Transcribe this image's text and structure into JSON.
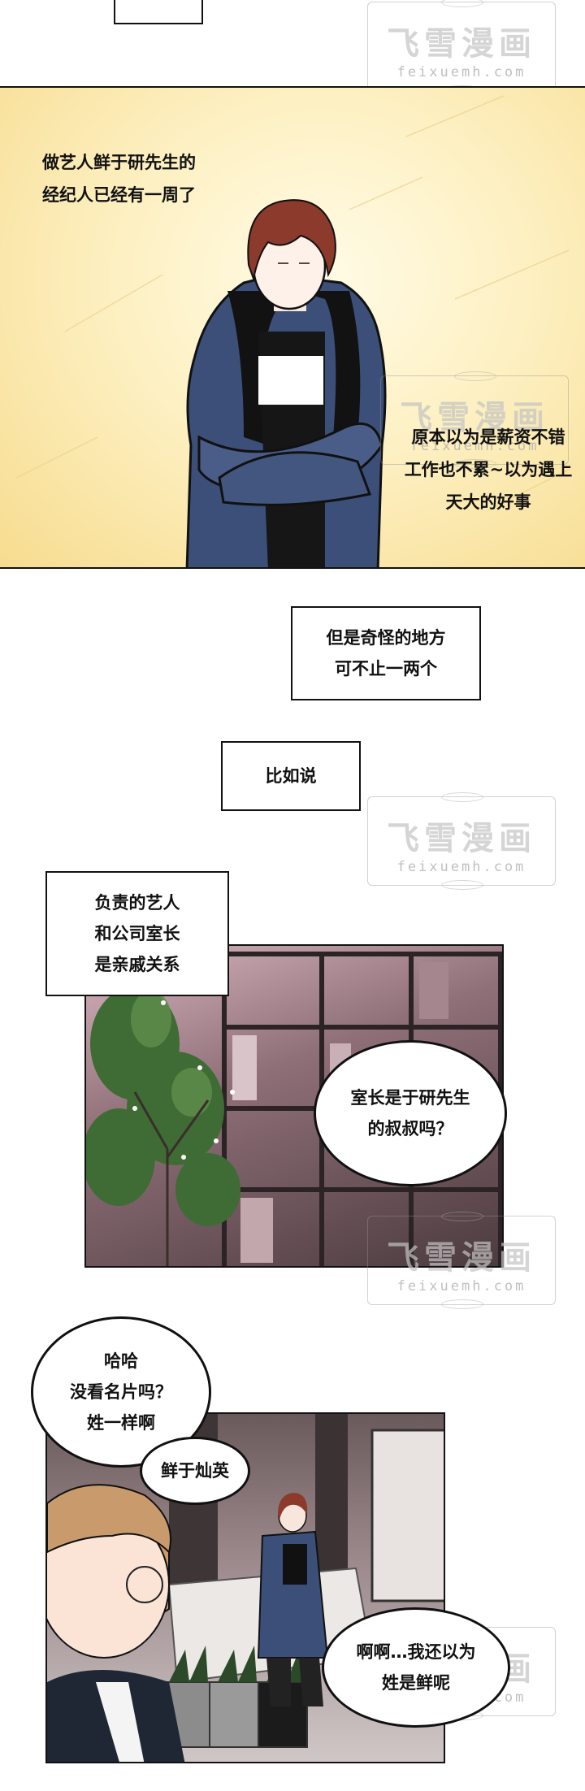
{
  "colors": {
    "ink": "#111111",
    "panel1_bg": "#fbe9ad",
    "jacket": "#3c4f78",
    "hair": "#8b3a2c"
  },
  "watermark": {
    "zh": "飞雪漫画",
    "en": "feixuemh.com"
  },
  "panel1": {
    "narration_a": [
      "做艺人鲜于研先生的",
      "经纪人已经有一周了"
    ],
    "narration_b": [
      "原本以为是薪资不错",
      "工作也不累~以为遇上",
      "天大的好事"
    ]
  },
  "captions": {
    "strange": [
      "但是奇怪的地方",
      "可不止一两个"
    ],
    "for_example": [
      "比如说"
    ],
    "relatives": [
      "负责的艺人",
      "和公司室长",
      "是亲戚关系"
    ]
  },
  "panel2": {
    "question": [
      "室长是于研先生",
      "的叔叔吗？"
    ]
  },
  "panel3": {
    "haha": [
      "哈哈",
      "没看名片吗？",
      "姓一样啊"
    ],
    "name": [
      "鲜于灿英"
    ],
    "reply": [
      "啊啊…我还以为",
      "姓是鲜呢"
    ]
  }
}
